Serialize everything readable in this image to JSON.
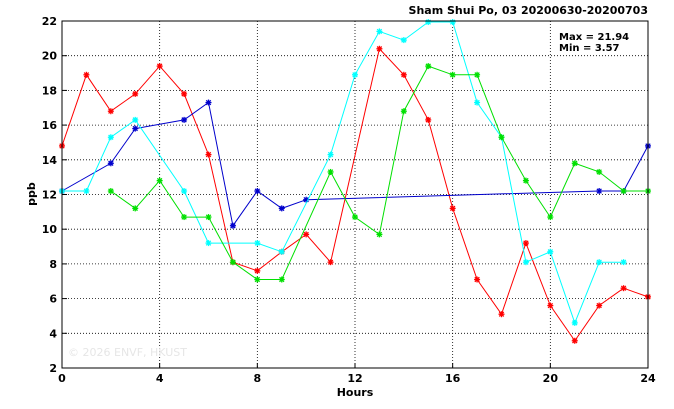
{
  "chart_data": {
    "type": "line",
    "title": "Sham Shui Po, 03 20200630-20200703",
    "xlabel": "Hours",
    "ylabel": "ppb",
    "xlim": [
      0,
      24
    ],
    "ylim": [
      2,
      22
    ],
    "xticks": [
      0,
      4,
      8,
      12,
      16,
      20,
      24
    ],
    "yticks": [
      2,
      4,
      6,
      8,
      10,
      12,
      14,
      16,
      18,
      20,
      22
    ],
    "grid": true,
    "stats": {
      "max": "Max = 21.94",
      "min": "Min =  3.57"
    },
    "watermark": "© 2026  ENVF, HKUST",
    "series": [
      {
        "color": "#ff0000",
        "points": [
          [
            0,
            14.8
          ],
          [
            1,
            18.9
          ],
          [
            2,
            16.8
          ],
          [
            3,
            17.8
          ],
          [
            4,
            19.4
          ],
          [
            5,
            17.8
          ],
          [
            6,
            14.3
          ],
          [
            7,
            8.1
          ],
          [
            8,
            7.6
          ],
          [
            9,
            8.7
          ],
          [
            10,
            9.7
          ],
          [
            11,
            8.1
          ],
          [
            13,
            20.4
          ],
          [
            14,
            18.9
          ],
          [
            15,
            16.3
          ],
          [
            16,
            11.2
          ],
          [
            17,
            7.1
          ],
          [
            18,
            5.1
          ],
          [
            19,
            9.2
          ],
          [
            20,
            5.6
          ],
          [
            21,
            3.57
          ],
          [
            22,
            5.6
          ],
          [
            23,
            6.6
          ],
          [
            24,
            6.1
          ]
        ]
      },
      {
        "color": "#0000cc",
        "points": [
          [
            0,
            12.2
          ],
          [
            2,
            13.8
          ],
          [
            3,
            15.8
          ],
          [
            5,
            16.3
          ],
          [
            6,
            17.3
          ],
          [
            7,
            10.2
          ],
          [
            8,
            12.2
          ],
          [
            9,
            11.2
          ],
          [
            10,
            11.7
          ],
          [
            22,
            12.2
          ],
          [
            23,
            12.2
          ],
          [
            24,
            14.8
          ]
        ]
      },
      {
        "color": "#00ffff",
        "points": [
          [
            0,
            12.2
          ],
          [
            1,
            12.2
          ],
          [
            2,
            15.3
          ],
          [
            3,
            16.3
          ],
          [
            5,
            12.2
          ],
          [
            6,
            9.2
          ],
          [
            8,
            9.2
          ],
          [
            9,
            8.7
          ],
          [
            11,
            14.3
          ],
          [
            12,
            18.9
          ],
          [
            13,
            21.4
          ],
          [
            14,
            20.9
          ],
          [
            15,
            21.94
          ],
          [
            16,
            21.94
          ],
          [
            17,
            17.3
          ],
          [
            18,
            15.3
          ],
          [
            19,
            8.1
          ],
          [
            20,
            8.7
          ],
          [
            21,
            4.6
          ],
          [
            22,
            8.1
          ],
          [
            23,
            8.1
          ]
        ]
      },
      {
        "color": "#00e000",
        "points": [
          [
            2,
            12.2
          ],
          [
            3,
            11.2
          ],
          [
            4,
            12.8
          ],
          [
            5,
            10.7
          ],
          [
            6,
            10.7
          ],
          [
            7,
            8.1
          ],
          [
            8,
            7.1
          ],
          [
            9,
            7.1
          ],
          [
            11,
            13.3
          ],
          [
            12,
            10.7
          ],
          [
            13,
            9.7
          ],
          [
            14,
            16.8
          ],
          [
            15,
            19.4
          ],
          [
            16,
            18.9
          ],
          [
            17,
            18.9
          ],
          [
            18,
            15.3
          ],
          [
            19,
            12.8
          ],
          [
            20,
            10.7
          ],
          [
            21,
            13.8
          ],
          [
            22,
            13.3
          ],
          [
            23,
            12.2
          ],
          [
            24,
            12.2
          ]
        ]
      }
    ]
  }
}
